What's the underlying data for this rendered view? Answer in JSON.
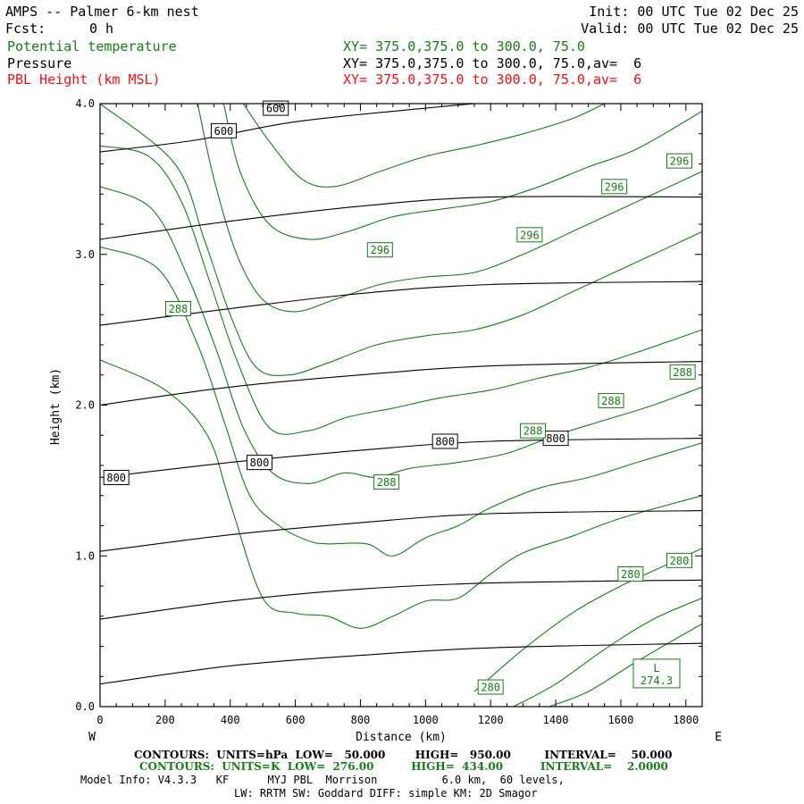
{
  "header": {
    "model_title": "AMPS -- Palmer 6-km nest",
    "fcst_label": "Fcst:",
    "fcst_value": "0 h",
    "init": "Init: 00 UTC Tue 02 Dec 25",
    "valid": "Valid: 00 UTC Tue 02 Dec 25",
    "field1_name": "Potential temperature",
    "field1_xy": "XY= 375.0,375.0 to 300.0, 75.0",
    "field2_name": "Pressure",
    "field2_xy": "XY= 375.0,375.0 to 300.0, 75.0,av=  6",
    "field3_name": "PBL Height (km MSL)",
    "field3_xy": "XY= 375.0,375.0 to 300.0, 75.0,av=  6"
  },
  "colors": {
    "pressure": "#000000",
    "theta": "#1a7a1a",
    "pbl": "#e8121b"
  },
  "chart_data": {
    "type": "contour-cross-section",
    "xlabel": "Distance (km)",
    "ylabel": "Height (km)",
    "xlim": [
      0,
      1850
    ],
    "ylim": [
      0,
      4.0
    ],
    "x_ticks": [
      0,
      200,
      400,
      600,
      800,
      1000,
      1200,
      1400,
      1600,
      1800
    ],
    "y_ticks": [
      0.0,
      1.0,
      2.0,
      3.0,
      4.0
    ],
    "y_tick_labels": [
      "0.0",
      "1.0",
      "2.0",
      "3.0",
      "4.0"
    ],
    "left_end_label": "W",
    "right_end_label": "E",
    "pressure_contours": [
      {
        "hPa": 950,
        "points": [
          [
            0,
            0.15
          ],
          [
            400,
            0.27
          ],
          [
            800,
            0.34
          ],
          [
            1200,
            0.39
          ],
          [
            1850,
            0.42
          ]
        ]
      },
      {
        "hPa": 900,
        "points": [
          [
            0,
            0.58
          ],
          [
            400,
            0.7
          ],
          [
            800,
            0.78
          ],
          [
            1200,
            0.82
          ],
          [
            1850,
            0.84
          ]
        ]
      },
      {
        "hPa": 850,
        "points": [
          [
            0,
            1.03
          ],
          [
            400,
            1.14
          ],
          [
            800,
            1.22
          ],
          [
            1200,
            1.28
          ],
          [
            1850,
            1.3
          ]
        ]
      },
      {
        "hPa": 800,
        "points": [
          [
            0,
            1.52
          ],
          [
            400,
            1.62
          ],
          [
            800,
            1.7
          ],
          [
            1200,
            1.76
          ],
          [
            1850,
            1.78
          ]
        ]
      },
      {
        "hPa": 750,
        "points": [
          [
            0,
            2.0
          ],
          [
            400,
            2.12
          ],
          [
            800,
            2.2
          ],
          [
            1200,
            2.26
          ],
          [
            1850,
            2.29
          ]
        ]
      },
      {
        "hPa": 700,
        "points": [
          [
            0,
            2.53
          ],
          [
            400,
            2.64
          ],
          [
            800,
            2.74
          ],
          [
            1200,
            2.8
          ],
          [
            1850,
            2.82
          ]
        ]
      },
      {
        "hPa": 650,
        "points": [
          [
            0,
            3.1
          ],
          [
            400,
            3.22
          ],
          [
            800,
            3.32
          ],
          [
            1200,
            3.38
          ],
          [
            1850,
            3.38
          ]
        ]
      },
      {
        "hPa": 600,
        "points": [
          [
            0,
            3.68
          ],
          [
            300,
            3.76
          ],
          [
            600,
            3.88
          ],
          [
            1000,
            3.97
          ],
          [
            1150,
            4.0
          ]
        ]
      }
    ],
    "theta_contours": [
      {
        "K": 276,
        "points": [
          [
            1380,
            0.0
          ],
          [
            1500,
            0.1
          ],
          [
            1650,
            0.3
          ],
          [
            1850,
            0.55
          ]
        ]
      },
      {
        "K": 278,
        "points": [
          [
            1270,
            0.0
          ],
          [
            1400,
            0.15
          ],
          [
            1550,
            0.38
          ],
          [
            1700,
            0.58
          ],
          [
            1850,
            0.72
          ]
        ]
      },
      {
        "K": 280,
        "points": [
          [
            1150,
            0.1
          ],
          [
            1300,
            0.38
          ],
          [
            1450,
            0.62
          ],
          [
            1600,
            0.8
          ],
          [
            1750,
            0.95
          ],
          [
            1850,
            1.05
          ]
        ]
      },
      {
        "K": 282,
        "points": [
          [
            0,
            2.3
          ],
          [
            200,
            2.1
          ],
          [
            330,
            1.8
          ],
          [
            400,
            1.35
          ],
          [
            500,
            0.72
          ],
          [
            600,
            0.62
          ],
          [
            700,
            0.6
          ],
          [
            800,
            0.52
          ],
          [
            900,
            0.6
          ],
          [
            1000,
            0.7
          ],
          [
            1100,
            0.72
          ],
          [
            1200,
            0.88
          ],
          [
            1300,
            1.02
          ],
          [
            1450,
            1.13
          ],
          [
            1600,
            1.25
          ],
          [
            1850,
            1.4
          ]
        ]
      },
      {
        "K": 284,
        "points": [
          [
            0,
            3.05
          ],
          [
            180,
            2.9
          ],
          [
            300,
            2.4
          ],
          [
            380,
            1.9
          ],
          [
            460,
            1.4
          ],
          [
            550,
            1.2
          ],
          [
            640,
            1.1
          ],
          [
            700,
            1.08
          ],
          [
            820,
            1.08
          ],
          [
            900,
            1.0
          ],
          [
            1000,
            1.12
          ],
          [
            1100,
            1.2
          ],
          [
            1200,
            1.32
          ],
          [
            1350,
            1.45
          ],
          [
            1500,
            1.52
          ],
          [
            1650,
            1.62
          ],
          [
            1850,
            1.75
          ]
        ]
      },
      {
        "K": 286,
        "points": [
          [
            0,
            3.45
          ],
          [
            160,
            3.3
          ],
          [
            270,
            2.85
          ],
          [
            360,
            2.35
          ],
          [
            440,
            1.85
          ],
          [
            530,
            1.55
          ],
          [
            640,
            1.48
          ],
          [
            750,
            1.55
          ],
          [
            850,
            1.52
          ],
          [
            950,
            1.58
          ],
          [
            1100,
            1.62
          ],
          [
            1250,
            1.68
          ],
          [
            1400,
            1.8
          ],
          [
            1550,
            1.9
          ],
          [
            1700,
            2.0
          ],
          [
            1850,
            2.12
          ]
        ]
      },
      {
        "K": 288,
        "points": [
          [
            0,
            3.72
          ],
          [
            150,
            3.65
          ],
          [
            250,
            3.35
          ],
          [
            340,
            2.8
          ],
          [
            420,
            2.3
          ],
          [
            520,
            1.85
          ],
          [
            640,
            1.83
          ],
          [
            760,
            1.92
          ],
          [
            900,
            1.98
          ],
          [
            1050,
            2.05
          ],
          [
            1200,
            2.1
          ],
          [
            1350,
            2.18
          ],
          [
            1500,
            2.25
          ],
          [
            1650,
            2.35
          ],
          [
            1850,
            2.5
          ]
        ]
      },
      {
        "K": 290,
        "points": [
          [
            0,
            4.0
          ],
          [
            230,
            3.6
          ],
          [
            320,
            3.1
          ],
          [
            400,
            2.6
          ],
          [
            480,
            2.25
          ],
          [
            580,
            2.2
          ],
          [
            700,
            2.28
          ],
          [
            850,
            2.4
          ],
          [
            1000,
            2.46
          ],
          [
            1150,
            2.5
          ],
          [
            1300,
            2.6
          ],
          [
            1450,
            2.75
          ],
          [
            1600,
            2.9
          ],
          [
            1850,
            3.15
          ]
        ]
      },
      {
        "K": 292,
        "points": [
          [
            300,
            4.0
          ],
          [
            350,
            3.5
          ],
          [
            420,
            3.0
          ],
          [
            500,
            2.7
          ],
          [
            600,
            2.62
          ],
          [
            720,
            2.7
          ],
          [
            860,
            2.8
          ],
          [
            1000,
            2.85
          ],
          [
            1150,
            2.88
          ],
          [
            1300,
            3.0
          ],
          [
            1450,
            3.15
          ],
          [
            1600,
            3.3
          ],
          [
            1850,
            3.55
          ]
        ]
      },
      {
        "K": 294,
        "points": [
          [
            380,
            4.0
          ],
          [
            430,
            3.55
          ],
          [
            520,
            3.2
          ],
          [
            640,
            3.1
          ],
          [
            760,
            3.15
          ],
          [
            900,
            3.25
          ],
          [
            1050,
            3.3
          ],
          [
            1200,
            3.35
          ],
          [
            1350,
            3.45
          ],
          [
            1500,
            3.58
          ],
          [
            1650,
            3.7
          ],
          [
            1850,
            3.95
          ]
        ]
      },
      {
        "K": 296,
        "points": [
          [
            440,
            4.0
          ],
          [
            520,
            3.75
          ],
          [
            620,
            3.5
          ],
          [
            720,
            3.45
          ],
          [
            860,
            3.55
          ],
          [
            1000,
            3.65
          ],
          [
            1150,
            3.72
          ],
          [
            1300,
            3.8
          ],
          [
            1450,
            3.9
          ],
          [
            1550,
            4.0
          ]
        ]
      }
    ],
    "pressure_labels": [
      {
        "text": "600",
        "x": 380,
        "y": 3.82
      },
      {
        "text": "600",
        "x": 540,
        "y": 3.97
      },
      {
        "text": "800",
        "x": 50,
        "y": 1.52
      },
      {
        "text": "800",
        "x": 490,
        "y": 1.62
      },
      {
        "text": "800",
        "x": 1060,
        "y": 1.76
      },
      {
        "text": "800",
        "x": 1400,
        "y": 1.78
      }
    ],
    "theta_labels": [
      {
        "text": "296",
        "x": 1780,
        "y": 3.62
      },
      {
        "text": "296",
        "x": 1580,
        "y": 3.45
      },
      {
        "text": "296",
        "x": 1320,
        "y": 3.13
      },
      {
        "text": "296",
        "x": 860,
        "y": 3.03
      },
      {
        "text": "288",
        "x": 240,
        "y": 2.64
      },
      {
        "text": "288",
        "x": 1790,
        "y": 2.22
      },
      {
        "text": "288",
        "x": 1570,
        "y": 2.03
      },
      {
        "text": "288",
        "x": 1330,
        "y": 1.83
      },
      {
        "text": "288",
        "x": 880,
        "y": 1.49
      },
      {
        "text": "280",
        "x": 1780,
        "y": 0.97
      },
      {
        "text": "280",
        "x": 1630,
        "y": 0.88
      },
      {
        "text": "280",
        "x": 1200,
        "y": 0.13
      }
    ],
    "low_marker": {
      "letter": "L",
      "value": "274.3",
      "x": 1710,
      "y": 0.22
    }
  },
  "footer": {
    "pressure_contours": "CONTOURS:  UNITS=hPa  LOW=   50.000        HIGH=   950.00         INTERVAL=    50.000",
    "theta_contours": "CONTOURS:  UNITS=K  LOW=  276.00          HIGH=  434.00          INTERVAL=    2.0000",
    "model_info": "Model Info: V4.3.3   KF      MYJ PBL  Morrison          6.0 km,  60 levels,",
    "physics_info": "LW: RRTM SW: Goddard DIFF: simple KM: 2D Smagor"
  }
}
